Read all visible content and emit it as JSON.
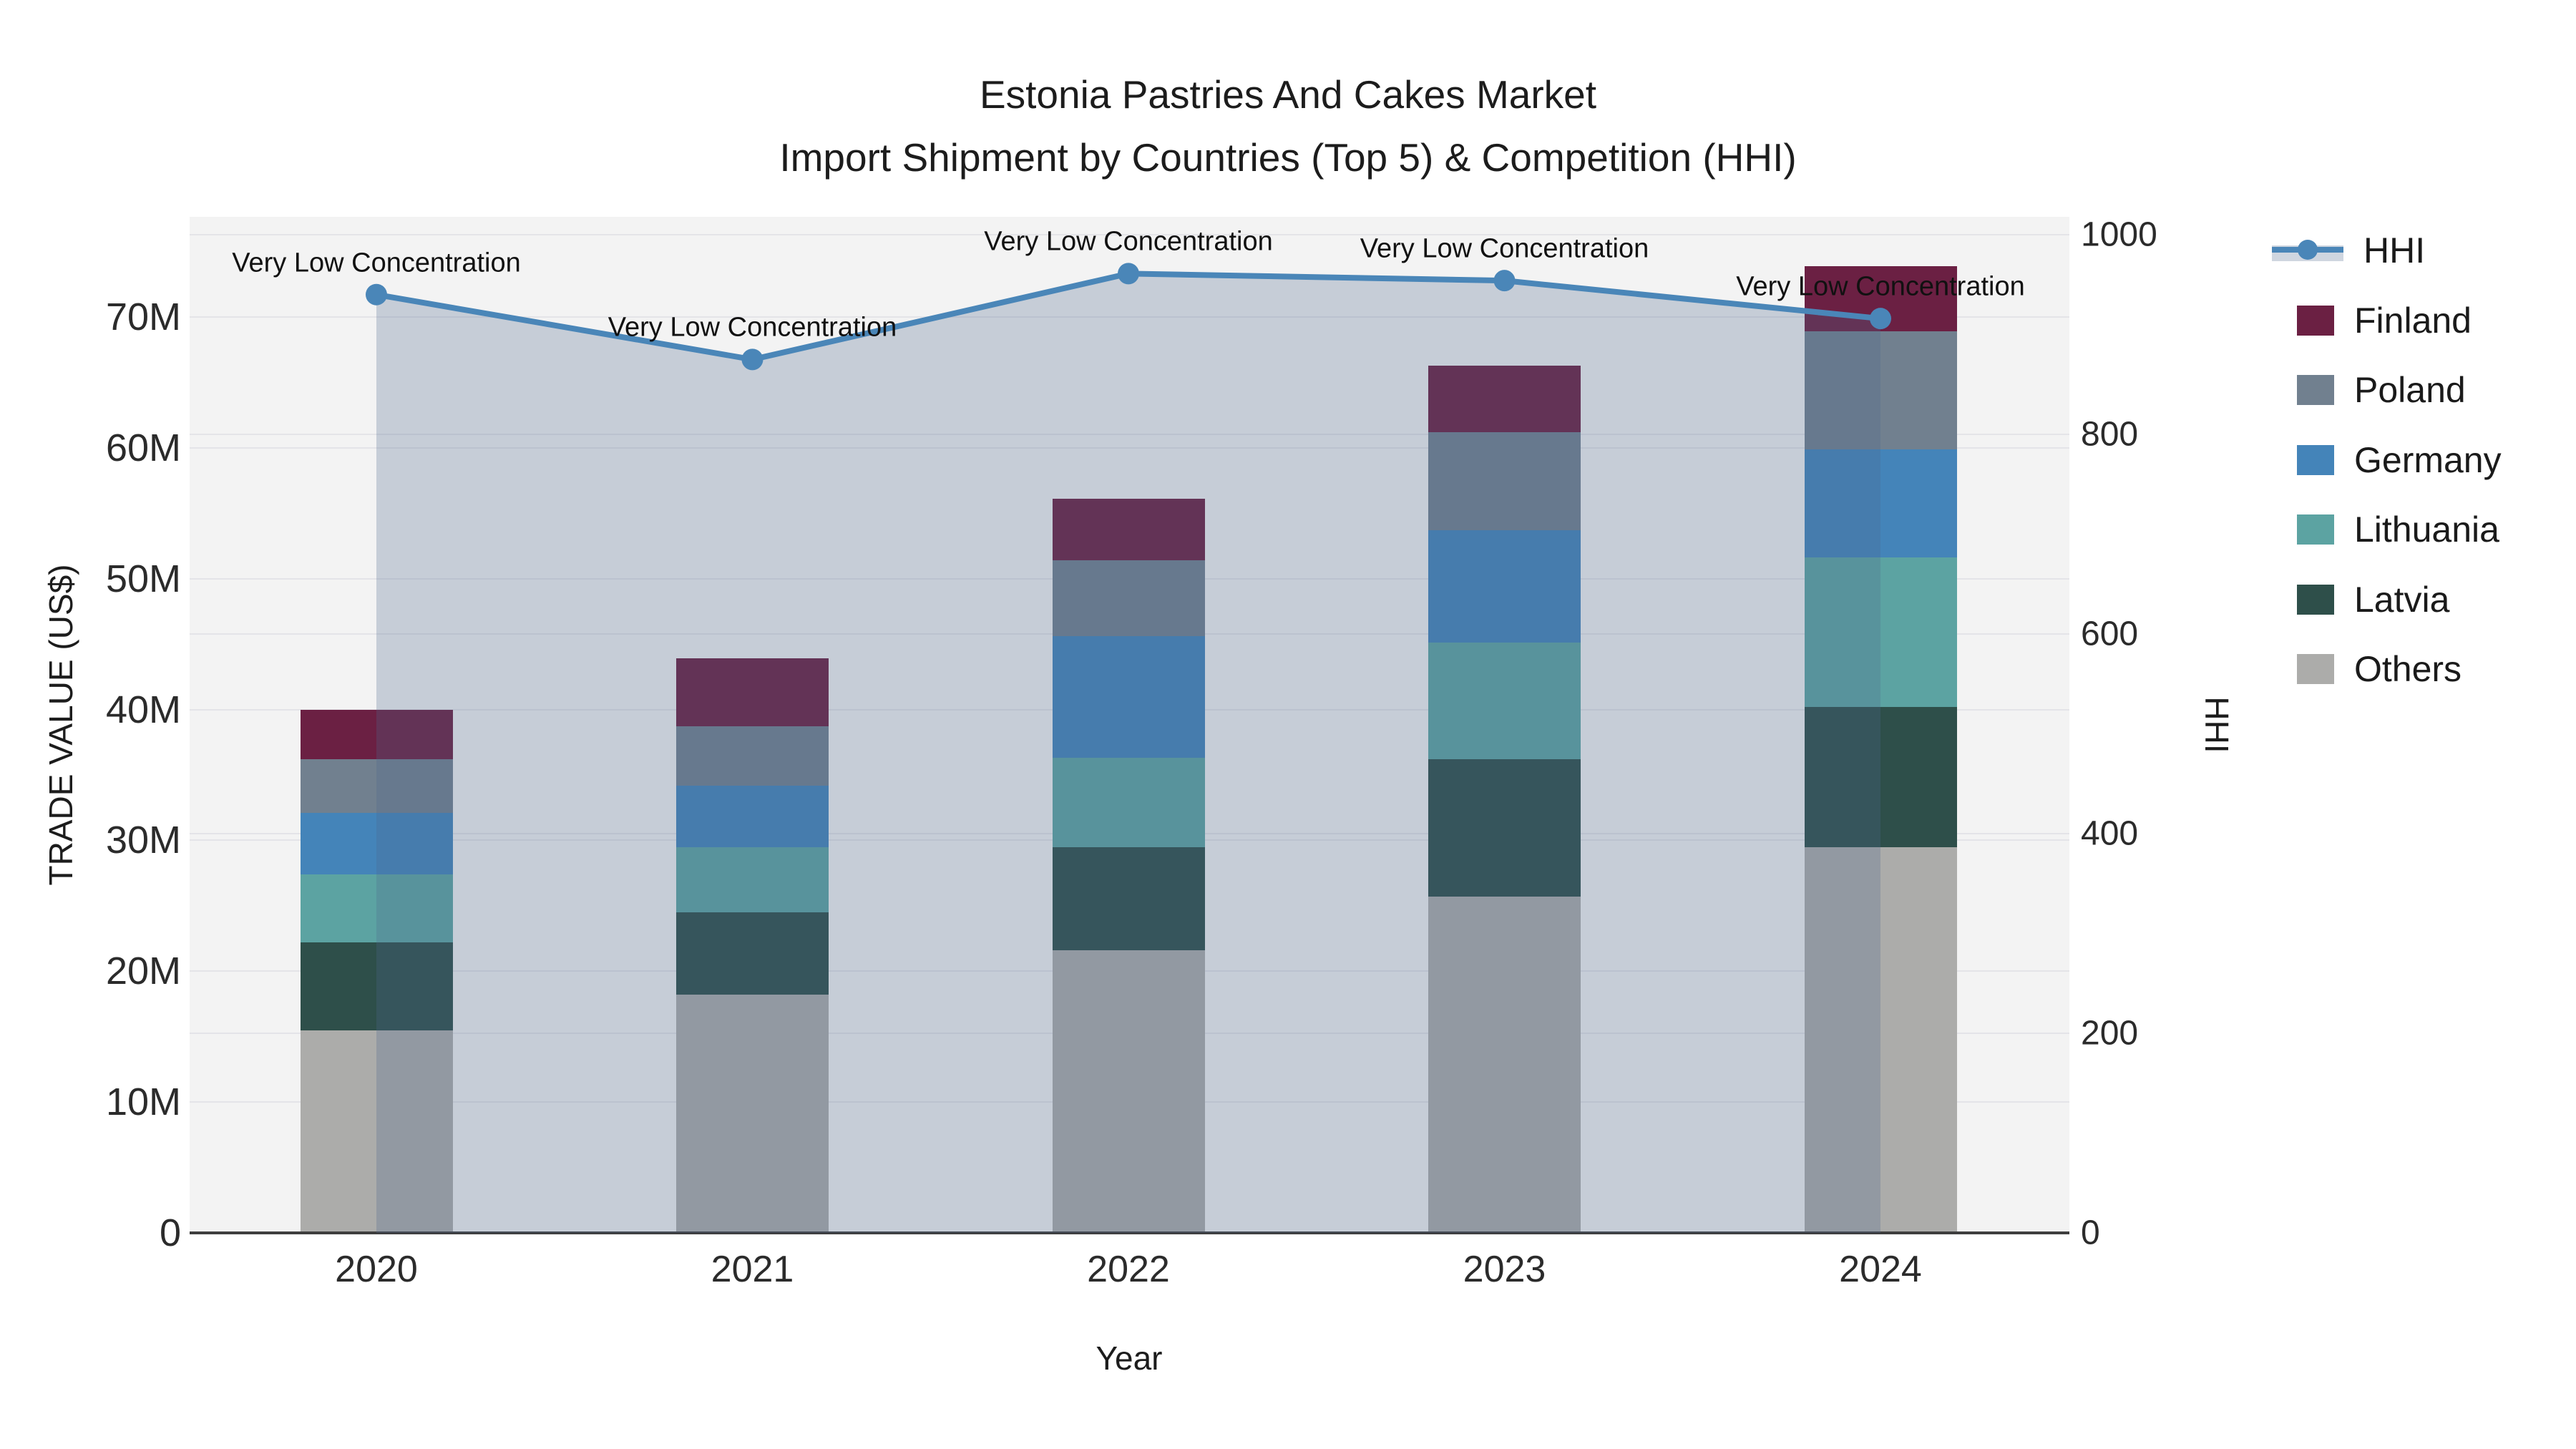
{
  "title": {
    "line1": "Estonia Pastries And Cakes Market",
    "line2": "Import Shipment by Countries (Top 5) & Competition (HHI)"
  },
  "x_axis": {
    "title": "Year"
  },
  "y_left_axis": {
    "title": "TRADE VALUE (US$)",
    "ticks": [
      "0",
      "10M",
      "20M",
      "30M",
      "40M",
      "50M",
      "60M",
      "70M"
    ]
  },
  "y_right_axis": {
    "title": "HHI",
    "ticks": [
      "0",
      "200",
      "400",
      "600",
      "800",
      "1000"
    ]
  },
  "annotation_text": "Very Low Concentration",
  "legend_order": [
    "HHI",
    "Finland",
    "Poland",
    "Germany",
    "Lithuania",
    "Latvia",
    "Others"
  ],
  "colors": {
    "Finland": "#6b2043",
    "Poland": "#71808f",
    "Germany": "#4484b9",
    "Lithuania": "#5ca3a2",
    "Latvia": "#2e4f4a",
    "Others": "#acacaa",
    "hhi_line": "#4a86b8",
    "hhi_area_fill": "rgba(78,103,140,0.27)",
    "plot_background": "#f3f3f3",
    "gridline": "#e4e4e8",
    "axis_line": "#3e3e3e",
    "text": "#1c1c1c"
  },
  "chart_data": {
    "type": "bar+line combo (stacked bars, secondary-axis line)",
    "title": "Estonia Pastries And Cakes Market — Import Shipment by Countries (Top 5) & Competition (HHI)",
    "xlabel": "Year",
    "ylabel_left": "TRADE VALUE (US$)",
    "ylabel_right": "HHI",
    "ylim_left_millions": [
      0,
      70
    ],
    "ylim_right": [
      0,
      1000
    ],
    "grid": true,
    "legend_position": "right",
    "categories": [
      "2020",
      "2021",
      "2022",
      "2023",
      "2024"
    ],
    "stack_order_bottom_to_top": [
      "Others",
      "Latvia",
      "Lithuania",
      "Germany",
      "Poland",
      "Finland"
    ],
    "series_millions_usd": [
      {
        "name": "Others",
        "values": [
          15.5,
          18.2,
          21.6,
          25.7,
          29.5
        ]
      },
      {
        "name": "Latvia",
        "values": [
          6.7,
          6.3,
          7.9,
          10.5,
          10.7
        ]
      },
      {
        "name": "Lithuania",
        "values": [
          5.2,
          5.0,
          6.8,
          8.9,
          11.4
        ]
      },
      {
        "name": "Germany",
        "values": [
          4.7,
          4.7,
          9.3,
          8.6,
          8.3
        ]
      },
      {
        "name": "Poland",
        "values": [
          4.1,
          4.5,
          5.8,
          7.5,
          9.0
        ]
      },
      {
        "name": "Finland",
        "values": [
          3.8,
          5.2,
          4.7,
          5.1,
          5.0
        ]
      }
    ],
    "totals_millions_usd": [
      40.0,
      43.9,
      56.1,
      66.3,
      73.9
    ],
    "hhi_series": {
      "name": "HHI",
      "values": [
        940,
        875,
        961,
        954,
        916
      ],
      "point_annotations": [
        "Very Low Concentration",
        "Very Low Concentration",
        "Very Low Concentration",
        "Very Low Concentration",
        "Very Low Concentration"
      ],
      "style": "line with round markers and area fill to zero"
    }
  }
}
